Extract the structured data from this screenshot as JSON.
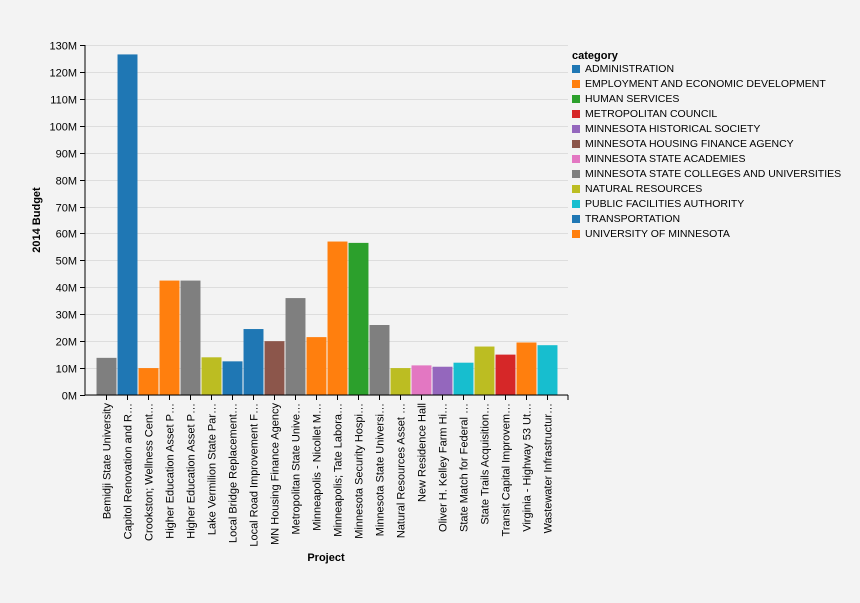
{
  "chart_data": {
    "type": "bar",
    "title": "",
    "xlabel": "Project",
    "ylabel": "2014 Budget",
    "ylim": [
      0,
      130000000
    ],
    "yticks": [
      {
        "value": 0,
        "label": "0M"
      },
      {
        "value": 10000000,
        "label": "10M"
      },
      {
        "value": 20000000,
        "label": "20M"
      },
      {
        "value": 30000000,
        "label": "30M"
      },
      {
        "value": 40000000,
        "label": "40M"
      },
      {
        "value": 50000000,
        "label": "50M"
      },
      {
        "value": 60000000,
        "label": "60M"
      },
      {
        "value": 70000000,
        "label": "70M"
      },
      {
        "value": 80000000,
        "label": "80M"
      },
      {
        "value": 90000000,
        "label": "90M"
      },
      {
        "value": 100000000,
        "label": "100M"
      },
      {
        "value": 110000000,
        "label": "110M"
      },
      {
        "value": 120000000,
        "label": "120M"
      },
      {
        "value": 130000000,
        "label": "130M"
      }
    ],
    "categories": [
      "Bemidji State University",
      "Capitol Renovation and R…",
      "Crookston; Wellness Cent…",
      "Higher Education Asset P…",
      "Higher Education Asset P…",
      "Lake Vermilion State Par…",
      "Local Bridge Replacement…",
      "Local Road Improvement F…",
      "MN Housing Finance Agency",
      "Metropolitan State Unive…",
      "Minneapolis - Nicollet M…",
      "Minneapolis; Tate Labora…",
      "Minnesota Security Hospi…",
      "Minnesota State Universi…",
      "Natural Resources Asset …",
      "New Residence Hall",
      "Oliver H. Kelley Farm Hi…",
      "State Match for Federal …",
      "State Trails Acquisition…",
      "Transit Capital Improvem…",
      "Virginia - Highway 53 Ut…",
      "Wastewater Infrastructur…"
    ],
    "values": [
      13800000,
      126500000,
      10000000,
      42500000,
      42500000,
      14000000,
      12500000,
      24500000,
      20000000,
      36000000,
      21500000,
      57000000,
      56500000,
      26000000,
      10000000,
      11000000,
      10500000,
      12000000,
      18000000,
      15000000,
      19500000,
      18500000
    ],
    "bar_categories": [
      "MINNESOTA STATE COLLEGES AND UNIVERSITIES",
      "ADMINISTRATION",
      "EMPLOYMENT AND ECONOMIC DEVELOPMENT",
      "EMPLOYMENT AND ECONOMIC DEVELOPMENT",
      "MINNESOTA STATE COLLEGES AND UNIVERSITIES",
      "NATURAL RESOURCES",
      "TRANSPORTATION",
      "TRANSPORTATION",
      "MINNESOTA HOUSING FINANCE AGENCY",
      "MINNESOTA STATE COLLEGES AND UNIVERSITIES",
      "EMPLOYMENT AND ECONOMIC DEVELOPMENT",
      "UNIVERSITY OF MINNESOTA",
      "HUMAN SERVICES",
      "MINNESOTA STATE COLLEGES AND UNIVERSITIES",
      "NATURAL RESOURCES",
      "MINNESOTA STATE ACADEMIES",
      "MINNESOTA HISTORICAL SOCIETY",
      "PUBLIC FACILITIES AUTHORITY",
      "NATURAL RESOURCES",
      "METROPOLITAN COUNCIL",
      "EMPLOYMENT AND ECONOMIC DEVELOPMENT",
      "PUBLIC FACILITIES AUTHORITY"
    ],
    "legend": {
      "title": "category",
      "placement": "top-right",
      "entries": [
        {
          "label": "ADMINISTRATION",
          "color": "#1f77b4"
        },
        {
          "label": "EMPLOYMENT AND ECONOMIC DEVELOPMENT",
          "color": "#ff7f0e"
        },
        {
          "label": "HUMAN SERVICES",
          "color": "#2ca02c"
        },
        {
          "label": "METROPOLITAN COUNCIL",
          "color": "#d62728"
        },
        {
          "label": "MINNESOTA HISTORICAL SOCIETY",
          "color": "#9467bd"
        },
        {
          "label": "MINNESOTA HOUSING FINANCE AGENCY",
          "color": "#8c564b"
        },
        {
          "label": "MINNESOTA STATE ACADEMIES",
          "color": "#e377c2"
        },
        {
          "label": "MINNESOTA STATE COLLEGES AND UNIVERSITIES",
          "color": "#7f7f7f"
        },
        {
          "label": "NATURAL RESOURCES",
          "color": "#bcbd22"
        },
        {
          "label": "PUBLIC FACILITIES AUTHORITY",
          "color": "#17becf"
        },
        {
          "label": "TRANSPORTATION",
          "color": "#1f77b4"
        },
        {
          "label": "UNIVERSITY OF MINNESOTA",
          "color": "#ff7f0e"
        }
      ]
    },
    "grid": true
  }
}
